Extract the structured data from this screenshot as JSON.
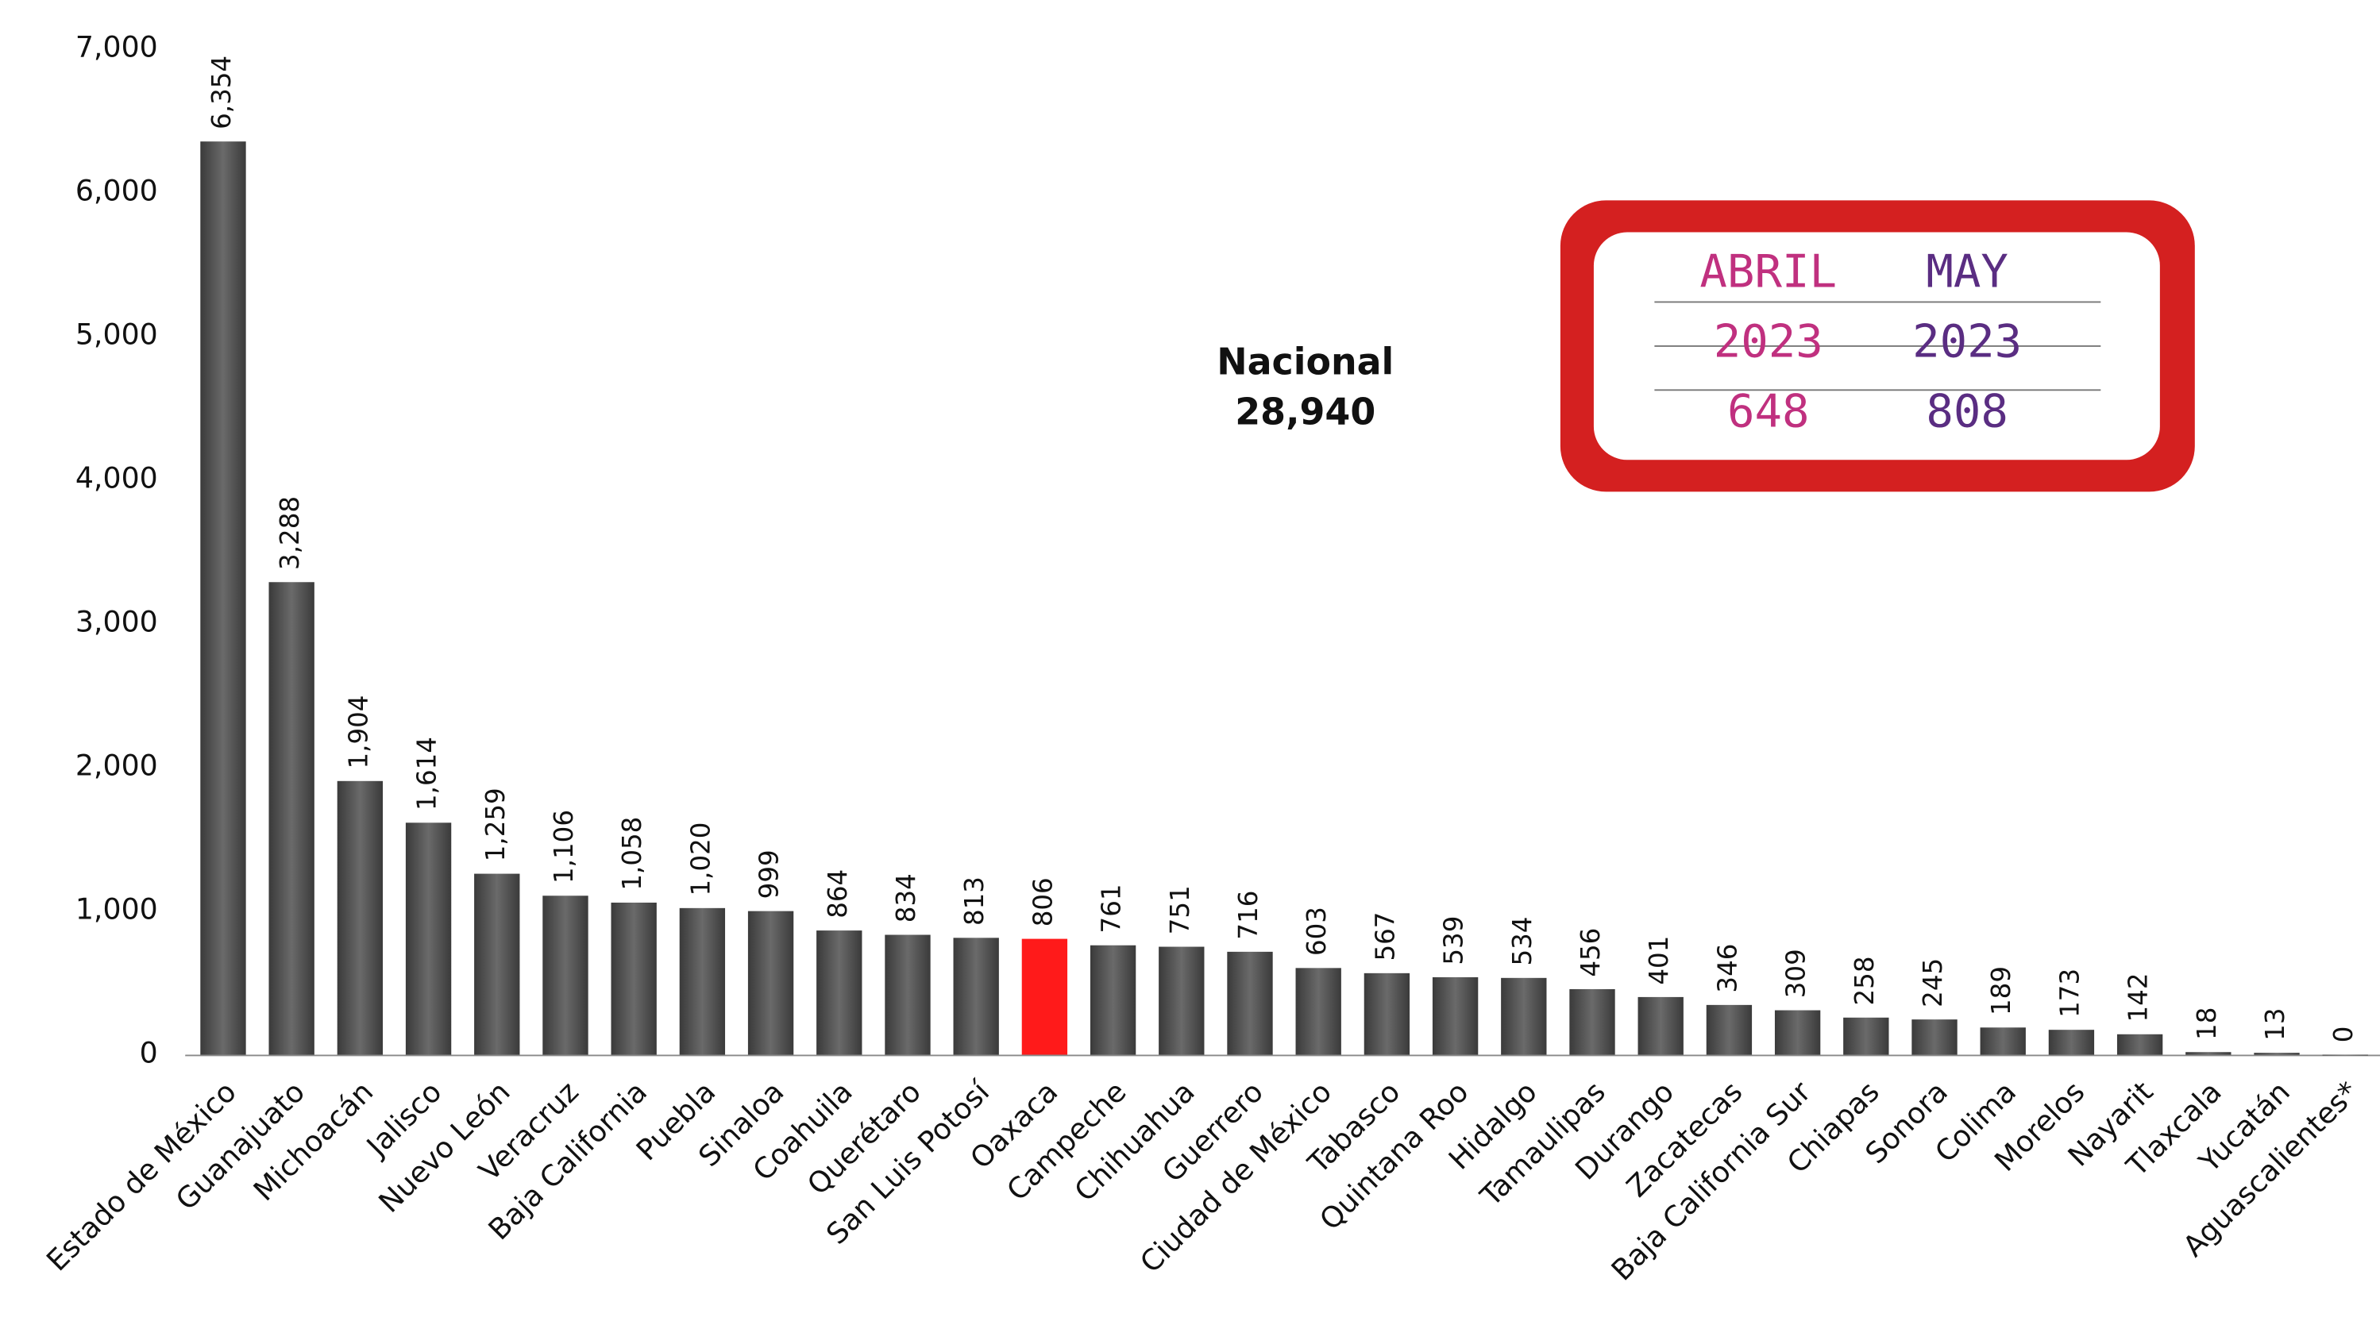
{
  "chart_data": {
    "type": "bar",
    "categories": [
      "Estado de México",
      "Guanajuato",
      "Michoacán",
      "Jalisco",
      "Nuevo León",
      "Veracruz",
      "Baja California",
      "Puebla",
      "Sinaloa",
      "Coahuila",
      "Querétaro",
      "San Luis Potosí",
      "Oaxaca",
      "Campeche",
      "Chihuahua",
      "Guerrero",
      "Ciudad de México",
      "Tabasco",
      "Quintana Roo",
      "Hidalgo",
      "Tamaulipas",
      "Durango",
      "Zacatecas",
      "Baja California Sur",
      "Chiapas",
      "Sonora",
      "Colima",
      "Morelos",
      "Nayarit",
      "Tlaxcala",
      "Yucatán",
      "Aguascalientes*"
    ],
    "values": [
      6354,
      3288,
      1904,
      1614,
      1259,
      1106,
      1058,
      1020,
      999,
      864,
      834,
      813,
      806,
      761,
      751,
      716,
      603,
      567,
      539,
      534,
      456,
      401,
      346,
      309,
      258,
      245,
      189,
      173,
      142,
      18,
      13,
      0
    ],
    "value_labels": [
      "6,354",
      "3,288",
      "1,904",
      "1,614",
      "1,259",
      "1,106",
      "1,058",
      "1,020",
      "999",
      "864",
      "834",
      "813",
      "806",
      "761",
      "751",
      "716",
      "603",
      "567",
      "539",
      "534",
      "456",
      "401",
      "346",
      "309",
      "258",
      "245",
      "189",
      "173",
      "142",
      "18",
      "13",
      "0"
    ],
    "color": "#555555",
    "highlight_category": "Oaxaca",
    "highlight_color": "#ff1a1a",
    "ylim": [
      0,
      7000
    ],
    "yticks": [
      0,
      {
        "value": 1000,
        "label": "1,000"
      },
      {
        "value": 2000,
        "label": "2,000"
      },
      {
        "value": 3000,
        "label": "3,000"
      },
      {
        "value": 4000,
        "label": "4,000"
      },
      {
        "value": 5000,
        "label": "5,000"
      },
      {
        "value": 6000,
        "label": "6,000"
      },
      {
        "value": 7000,
        "label": "7,000"
      }
    ],
    "annotation": {
      "label": "Nacional",
      "value": "28,940"
    },
    "inset": {
      "months": [
        "ABRIL",
        "MAY"
      ],
      "years": [
        "2023",
        "2023"
      ],
      "values": [
        648,
        808
      ],
      "colors": [
        "#c0307f",
        "#5a2d82"
      ],
      "frame_color": "#d42020"
    }
  }
}
